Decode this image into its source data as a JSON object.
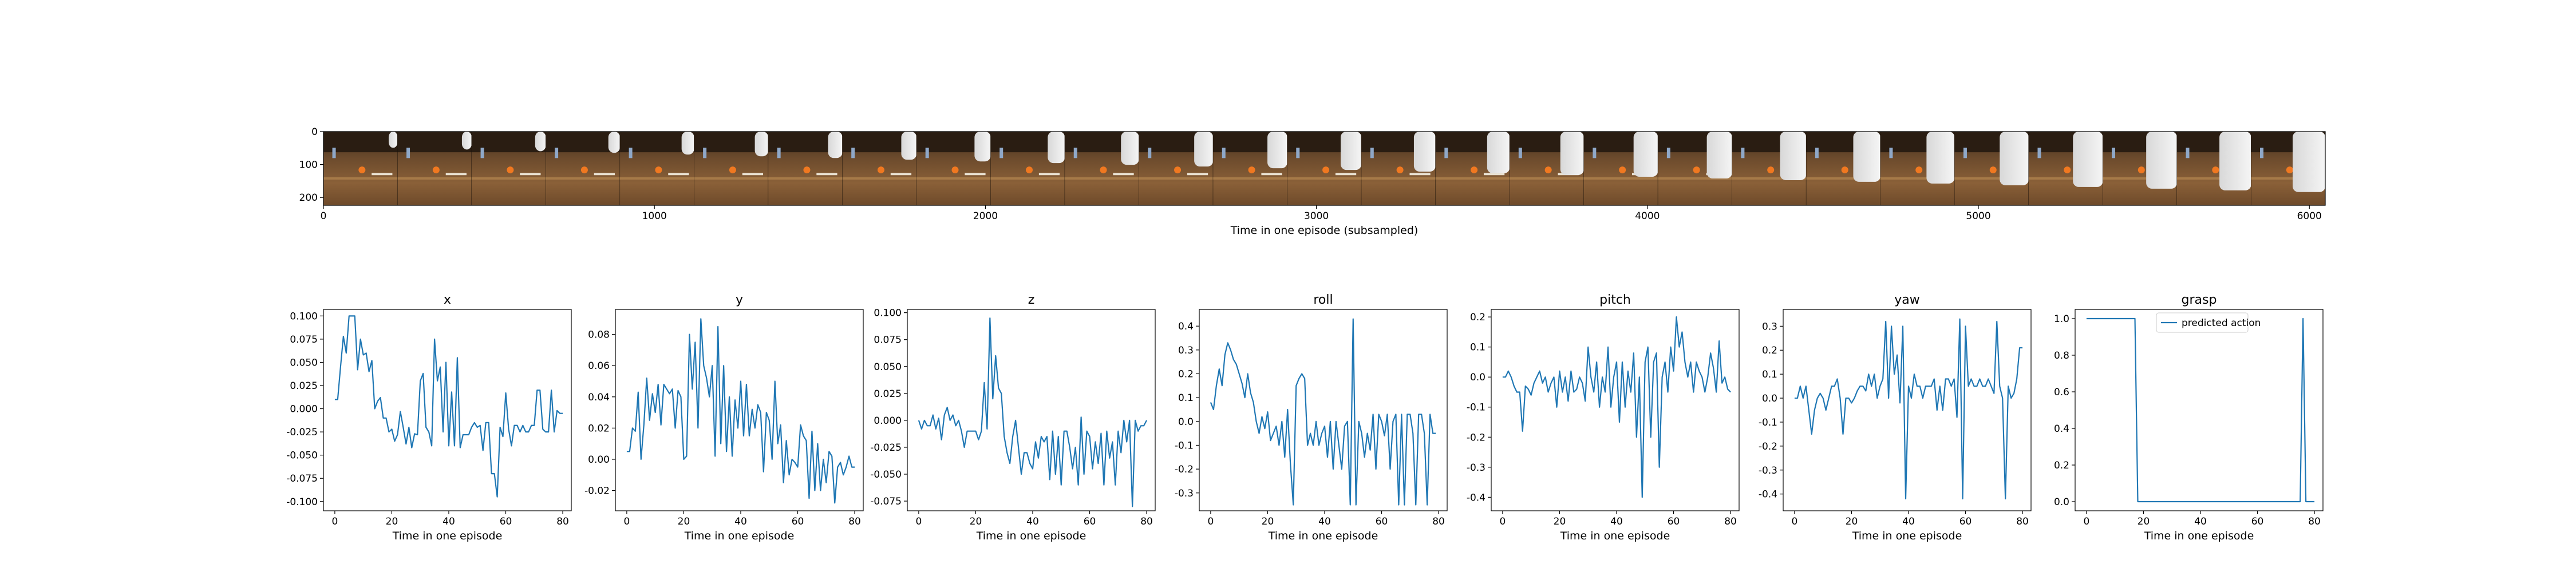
{
  "colors": {
    "line": "#1f77b4",
    "frame": "#000000",
    "background": "#ffffff"
  },
  "filmstrip": {
    "xlabel": "Time in one episode (subsampled)",
    "xticks": [
      0,
      1000,
      2000,
      3000,
      4000,
      5000,
      6000
    ],
    "yticks": [
      0,
      100,
      200
    ],
    "xlim": [
      0,
      6048
    ],
    "ylim": [
      0,
      224
    ],
    "frame_count": 27,
    "frame_width": 224,
    "image_description_icon": "robot-camera-frame-icon"
  },
  "chart_data": [
    {
      "type": "line",
      "title": "x",
      "xlabel": "Time in one episode",
      "ylabel": "",
      "xlim": [
        -4,
        83
      ],
      "ylim": [
        -0.11,
        0.107
      ],
      "xticks": [
        0,
        20,
        40,
        60,
        80
      ],
      "yticks": [
        "-0.100",
        "-0.075",
        "-0.050",
        "-0.025",
        "0.000",
        "0.025",
        "0.050",
        "0.075",
        "0.100"
      ],
      "series": [
        {
          "values": [
            0.01,
            0.01,
            0.045,
            0.078,
            0.06,
            0.1,
            0.1,
            0.1,
            0.042,
            0.075,
            0.058,
            0.06,
            0.04,
            0.052,
            0.0,
            0.008,
            0.012,
            -0.01,
            -0.01,
            -0.025,
            -0.022,
            -0.035,
            -0.028,
            -0.003,
            -0.02,
            -0.038,
            -0.02,
            -0.042,
            -0.027,
            -0.028,
            0.03,
            0.038,
            -0.02,
            -0.025,
            -0.04,
            0.075,
            0.03,
            0.045,
            -0.025,
            0.05,
            -0.04,
            0.018,
            -0.04,
            0.055,
            -0.042,
            -0.028,
            -0.028,
            -0.028,
            -0.02,
            -0.015,
            -0.02,
            -0.018,
            -0.045,
            -0.015,
            -0.015,
            -0.07,
            -0.07,
            -0.095,
            -0.02,
            -0.03,
            0.017,
            -0.022,
            -0.04,
            -0.018,
            -0.018,
            -0.025,
            -0.018,
            -0.025,
            -0.025,
            -0.018,
            -0.018,
            0.02,
            0.02,
            -0.022,
            -0.025,
            -0.025,
            0.02,
            -0.025,
            -0.002,
            -0.005,
            -0.005
          ]
        }
      ]
    },
    {
      "type": "line",
      "title": "y",
      "xlabel": "Time in one episode",
      "ylabel": "",
      "xlim": [
        -4,
        83
      ],
      "ylim": [
        -0.033,
        0.096
      ],
      "xticks": [
        0,
        20,
        40,
        60,
        80
      ],
      "yticks": [
        "-0.02",
        "0.00",
        "0.02",
        "0.04",
        "0.06",
        "0.08"
      ],
      "series": [
        {
          "values": [
            0.005,
            0.005,
            0.02,
            0.018,
            0.043,
            0.0,
            0.022,
            0.052,
            0.025,
            0.042,
            0.03,
            0.048,
            0.022,
            0.048,
            0.045,
            0.042,
            0.045,
            0.02,
            0.044,
            0.04,
            0.0,
            0.002,
            0.08,
            0.045,
            0.075,
            0.02,
            0.09,
            0.06,
            0.052,
            0.04,
            0.06,
            0.002,
            0.085,
            0.01,
            0.06,
            0.005,
            0.04,
            0.002,
            0.038,
            0.02,
            0.05,
            0.015,
            0.048,
            0.015,
            0.032,
            0.02,
            0.035,
            0.03,
            -0.008,
            0.03,
            0.025,
            0.0,
            0.05,
            0.01,
            0.022,
            -0.015,
            0.012,
            -0.01,
            0.0,
            -0.002,
            -0.005,
            0.022,
            0.015,
            0.012,
            -0.025,
            0.018,
            -0.02,
            0.01,
            -0.02,
            0.0,
            -0.015,
            0.005,
            0.002,
            -0.028,
            -0.005,
            -0.002,
            -0.01,
            -0.005,
            0.002,
            -0.005,
            -0.005
          ]
        }
      ]
    },
    {
      "type": "line",
      "title": "z",
      "xlabel": "Time in one episode",
      "ylabel": "",
      "xlim": [
        -4,
        83
      ],
      "ylim": [
        -0.084,
        0.103
      ],
      "xticks": [
        0,
        20,
        40,
        60,
        80
      ],
      "yticks": [
        "-0.075",
        "-0.050",
        "-0.025",
        "0.000",
        "0.025",
        "0.050",
        "0.075",
        "0.100"
      ],
      "series": [
        {
          "values": [
            0.0,
            -0.008,
            0.0,
            -0.005,
            -0.005,
            0.005,
            -0.008,
            0.002,
            -0.018,
            0.005,
            0.012,
            0.0,
            0.005,
            -0.005,
            0.0,
            -0.01,
            -0.025,
            -0.01,
            -0.01,
            -0.01,
            -0.01,
            -0.018,
            -0.01,
            0.035,
            -0.008,
            0.095,
            0.02,
            0.06,
            0.03,
            0.025,
            -0.015,
            -0.03,
            -0.04,
            -0.015,
            0.0,
            -0.025,
            -0.05,
            -0.03,
            -0.03,
            -0.04,
            -0.045,
            -0.02,
            -0.035,
            -0.015,
            -0.02,
            -0.015,
            -0.055,
            -0.01,
            -0.05,
            -0.015,
            -0.06,
            -0.01,
            -0.01,
            -0.025,
            -0.045,
            -0.025,
            -0.06,
            0.003,
            -0.05,
            -0.01,
            -0.015,
            -0.045,
            -0.02,
            -0.04,
            -0.012,
            -0.06,
            -0.01,
            -0.035,
            -0.02,
            -0.06,
            -0.01,
            -0.03,
            0.0,
            -0.02,
            0.0,
            -0.08,
            0.0,
            -0.01,
            -0.005,
            -0.005,
            0.0
          ]
        }
      ]
    },
    {
      "type": "line",
      "title": "roll",
      "xlabel": "Time in one episode",
      "ylabel": "",
      "xlim": [
        -4,
        83
      ],
      "ylim": [
        -0.375,
        0.47
      ],
      "xticks": [
        0,
        20,
        40,
        60,
        80
      ],
      "yticks": [
        "-0.3",
        "-0.2",
        "-0.1",
        "0.0",
        "0.1",
        "0.2",
        "0.3",
        "0.4"
      ],
      "series": [
        {
          "values": [
            0.08,
            0.05,
            0.15,
            0.22,
            0.15,
            0.28,
            0.33,
            0.3,
            0.26,
            0.24,
            0.2,
            0.16,
            0.1,
            0.2,
            0.12,
            0.08,
            0.0,
            -0.05,
            0.02,
            -0.03,
            0.04,
            -0.08,
            -0.05,
            -0.02,
            -0.1,
            0.0,
            -0.15,
            0.05,
            -0.18,
            -0.35,
            0.15,
            0.18,
            0.2,
            0.18,
            -0.1,
            -0.05,
            -0.1,
            0.0,
            -0.1,
            -0.05,
            -0.02,
            -0.15,
            0.0,
            -0.2,
            0.0,
            -0.1,
            -0.2,
            -0.02,
            0.0,
            -0.35,
            0.43,
            -0.35,
            0.0,
            -0.05,
            -0.15,
            -0.05,
            -0.12,
            0.03,
            -0.2,
            0.03,
            0.0,
            -0.06,
            0.03,
            -0.2,
            0.0,
            0.03,
            -0.35,
            0.03,
            -0.35,
            0.03,
            0.03,
            -0.05,
            -0.35,
            0.03,
            0.03,
            -0.05,
            -0.35,
            0.03,
            -0.05,
            -0.05
          ]
        }
      ]
    },
    {
      "type": "line",
      "title": "pitch",
      "xlabel": "Time in one episode",
      "ylabel": "",
      "xlim": [
        -4,
        83
      ],
      "ylim": [
        -0.445,
        0.225
      ],
      "xticks": [
        0,
        20,
        40,
        60,
        80
      ],
      "yticks": [
        "-0.4",
        "-0.3",
        "-0.2",
        "-0.1",
        "0.0",
        "0.1",
        "0.2"
      ],
      "series": [
        {
          "values": [
            0.0,
            0.0,
            0.02,
            0.0,
            -0.03,
            -0.05,
            -0.05,
            -0.18,
            -0.03,
            -0.04,
            -0.06,
            -0.02,
            0.0,
            0.02,
            -0.02,
            0.0,
            -0.05,
            -0.02,
            0.0,
            -0.1,
            0.02,
            -0.05,
            0.0,
            -0.08,
            0.02,
            -0.05,
            -0.04,
            0.0,
            -0.02,
            -0.08,
            0.1,
            0.0,
            -0.05,
            0.05,
            -0.1,
            0.0,
            -0.05,
            0.1,
            -0.1,
            0.0,
            0.05,
            -0.15,
            0.05,
            -0.1,
            0.02,
            -0.05,
            0.08,
            -0.2,
            0.0,
            -0.4,
            0.05,
            0.1,
            -0.2,
            0.05,
            0.08,
            -0.3,
            0.0,
            0.05,
            -0.05,
            0.1,
            0.02,
            0.2,
            0.1,
            0.15,
            0.05,
            0.0,
            0.05,
            -0.05,
            0.05,
            0.02,
            0.0,
            -0.05,
            0.0,
            0.08,
            0.03,
            -0.05,
            0.12,
            -0.02,
            0.0,
            -0.04,
            -0.05
          ]
        }
      ]
    },
    {
      "type": "line",
      "title": "yaw",
      "xlabel": "Time in one episode",
      "ylabel": "",
      "xlim": [
        -4,
        83
      ],
      "ylim": [
        -0.47,
        0.37
      ],
      "xticks": [
        0,
        20,
        40,
        60,
        80
      ],
      "yticks": [
        "-0.4",
        "-0.3",
        "-0.2",
        "-0.1",
        "0.0",
        "0.1",
        "0.2",
        "0.3"
      ],
      "series": [
        {
          "values": [
            0.0,
            0.0,
            0.05,
            0.0,
            0.05,
            -0.05,
            -0.15,
            -0.05,
            0.0,
            0.02,
            0.0,
            -0.05,
            0.0,
            0.05,
            0.05,
            0.08,
            0.0,
            -0.15,
            0.0,
            0.0,
            -0.02,
            0.0,
            0.03,
            0.05,
            0.05,
            0.03,
            0.1,
            0.05,
            0.1,
            0.0,
            0.05,
            0.08,
            0.32,
            0.0,
            0.3,
            0.1,
            0.18,
            -0.02,
            0.3,
            -0.42,
            0.05,
            0.0,
            0.1,
            0.05,
            0.05,
            0.0,
            0.05,
            0.05,
            0.05,
            0.08,
            -0.05,
            0.05,
            -0.05,
            0.08,
            0.08,
            0.05,
            0.08,
            -0.08,
            0.33,
            -0.42,
            0.3,
            0.05,
            0.08,
            0.05,
            0.05,
            0.08,
            0.05,
            0.05,
            0.08,
            0.05,
            0.02,
            0.32,
            0.05,
            0.0,
            -0.42,
            0.05,
            0.0,
            0.02,
            0.08,
            0.21,
            0.21
          ]
        }
      ]
    },
    {
      "type": "line",
      "title": "grasp",
      "xlabel": "Time in one episode",
      "ylabel": "",
      "xlim": [
        -4,
        83
      ],
      "ylim": [
        -0.05,
        1.05
      ],
      "xticks": [
        0,
        20,
        40,
        60,
        80
      ],
      "yticks": [
        "0.0",
        "0.2",
        "0.4",
        "0.6",
        "0.8",
        "1.0"
      ],
      "legend": {
        "entries": [
          "predicted action"
        ],
        "placement": "top-right"
      },
      "series": [
        {
          "name": "predicted action",
          "values": [
            1,
            1,
            1,
            1,
            1,
            1,
            1,
            1,
            1,
            1,
            1,
            1,
            1,
            1,
            1,
            1,
            1,
            1,
            0,
            0,
            0,
            0,
            0,
            0,
            0,
            0,
            0,
            0,
            0,
            0,
            0,
            0,
            0,
            0,
            0,
            0,
            0,
            0,
            0,
            0,
            0,
            0,
            0,
            0,
            0,
            0,
            0,
            0,
            0,
            0,
            0,
            0,
            0,
            0,
            0,
            0,
            0,
            0,
            0,
            0,
            0,
            0,
            0,
            0,
            0,
            0,
            0,
            0,
            0,
            0,
            0,
            0,
            0,
            0,
            0,
            0,
            1,
            0,
            0,
            0,
            0
          ]
        }
      ]
    }
  ]
}
